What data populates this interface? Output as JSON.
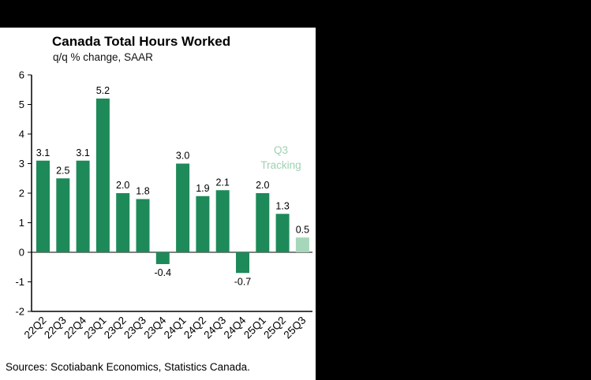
{
  "window": {
    "background_color": "#000000",
    "panel_color": "#ffffff"
  },
  "chart": {
    "title": "Canada Total Hours Worked",
    "subtitle": "q/q % change, SAAR",
    "sources": "Sources: Scotiabank Economics, Statistics Canada.",
    "annotation": {
      "lines": [
        "Q3",
        "Tracking"
      ],
      "color": "#9ed1b2"
    }
  },
  "chart_data": {
    "type": "bar",
    "title": "Canada Total Hours Worked",
    "subtitle": "q/q % change, SAAR",
    "categories": [
      "22Q2",
      "22Q3",
      "22Q4",
      "23Q1",
      "23Q2",
      "23Q3",
      "23Q4",
      "24Q1",
      "24Q2",
      "24Q3",
      "24Q4",
      "25Q1",
      "25Q2",
      "25Q3"
    ],
    "values": [
      3.1,
      2.5,
      3.1,
      5.2,
      2.0,
      1.8,
      -0.4,
      3.0,
      1.9,
      2.1,
      -0.7,
      2.0,
      1.3,
      0.5
    ],
    "value_labels": [
      "3.1",
      "2.5",
      "3.1",
      "5.2",
      "2.0",
      "1.8",
      "-0.4",
      "3.0",
      "1.9",
      "2.1",
      "-0.7",
      "2.0",
      "1.3",
      "0.5"
    ],
    "xlabel": "",
    "ylabel": "",
    "ylim": [
      -2,
      6
    ],
    "ytick_step": 1,
    "grid": false,
    "legend": "none",
    "bar_color": "#1e8a59",
    "highlight_index": 13,
    "highlight_color": "#a7d7ba",
    "annotation": "Q3 Tracking",
    "annotation_color": "#9ed1b2"
  }
}
